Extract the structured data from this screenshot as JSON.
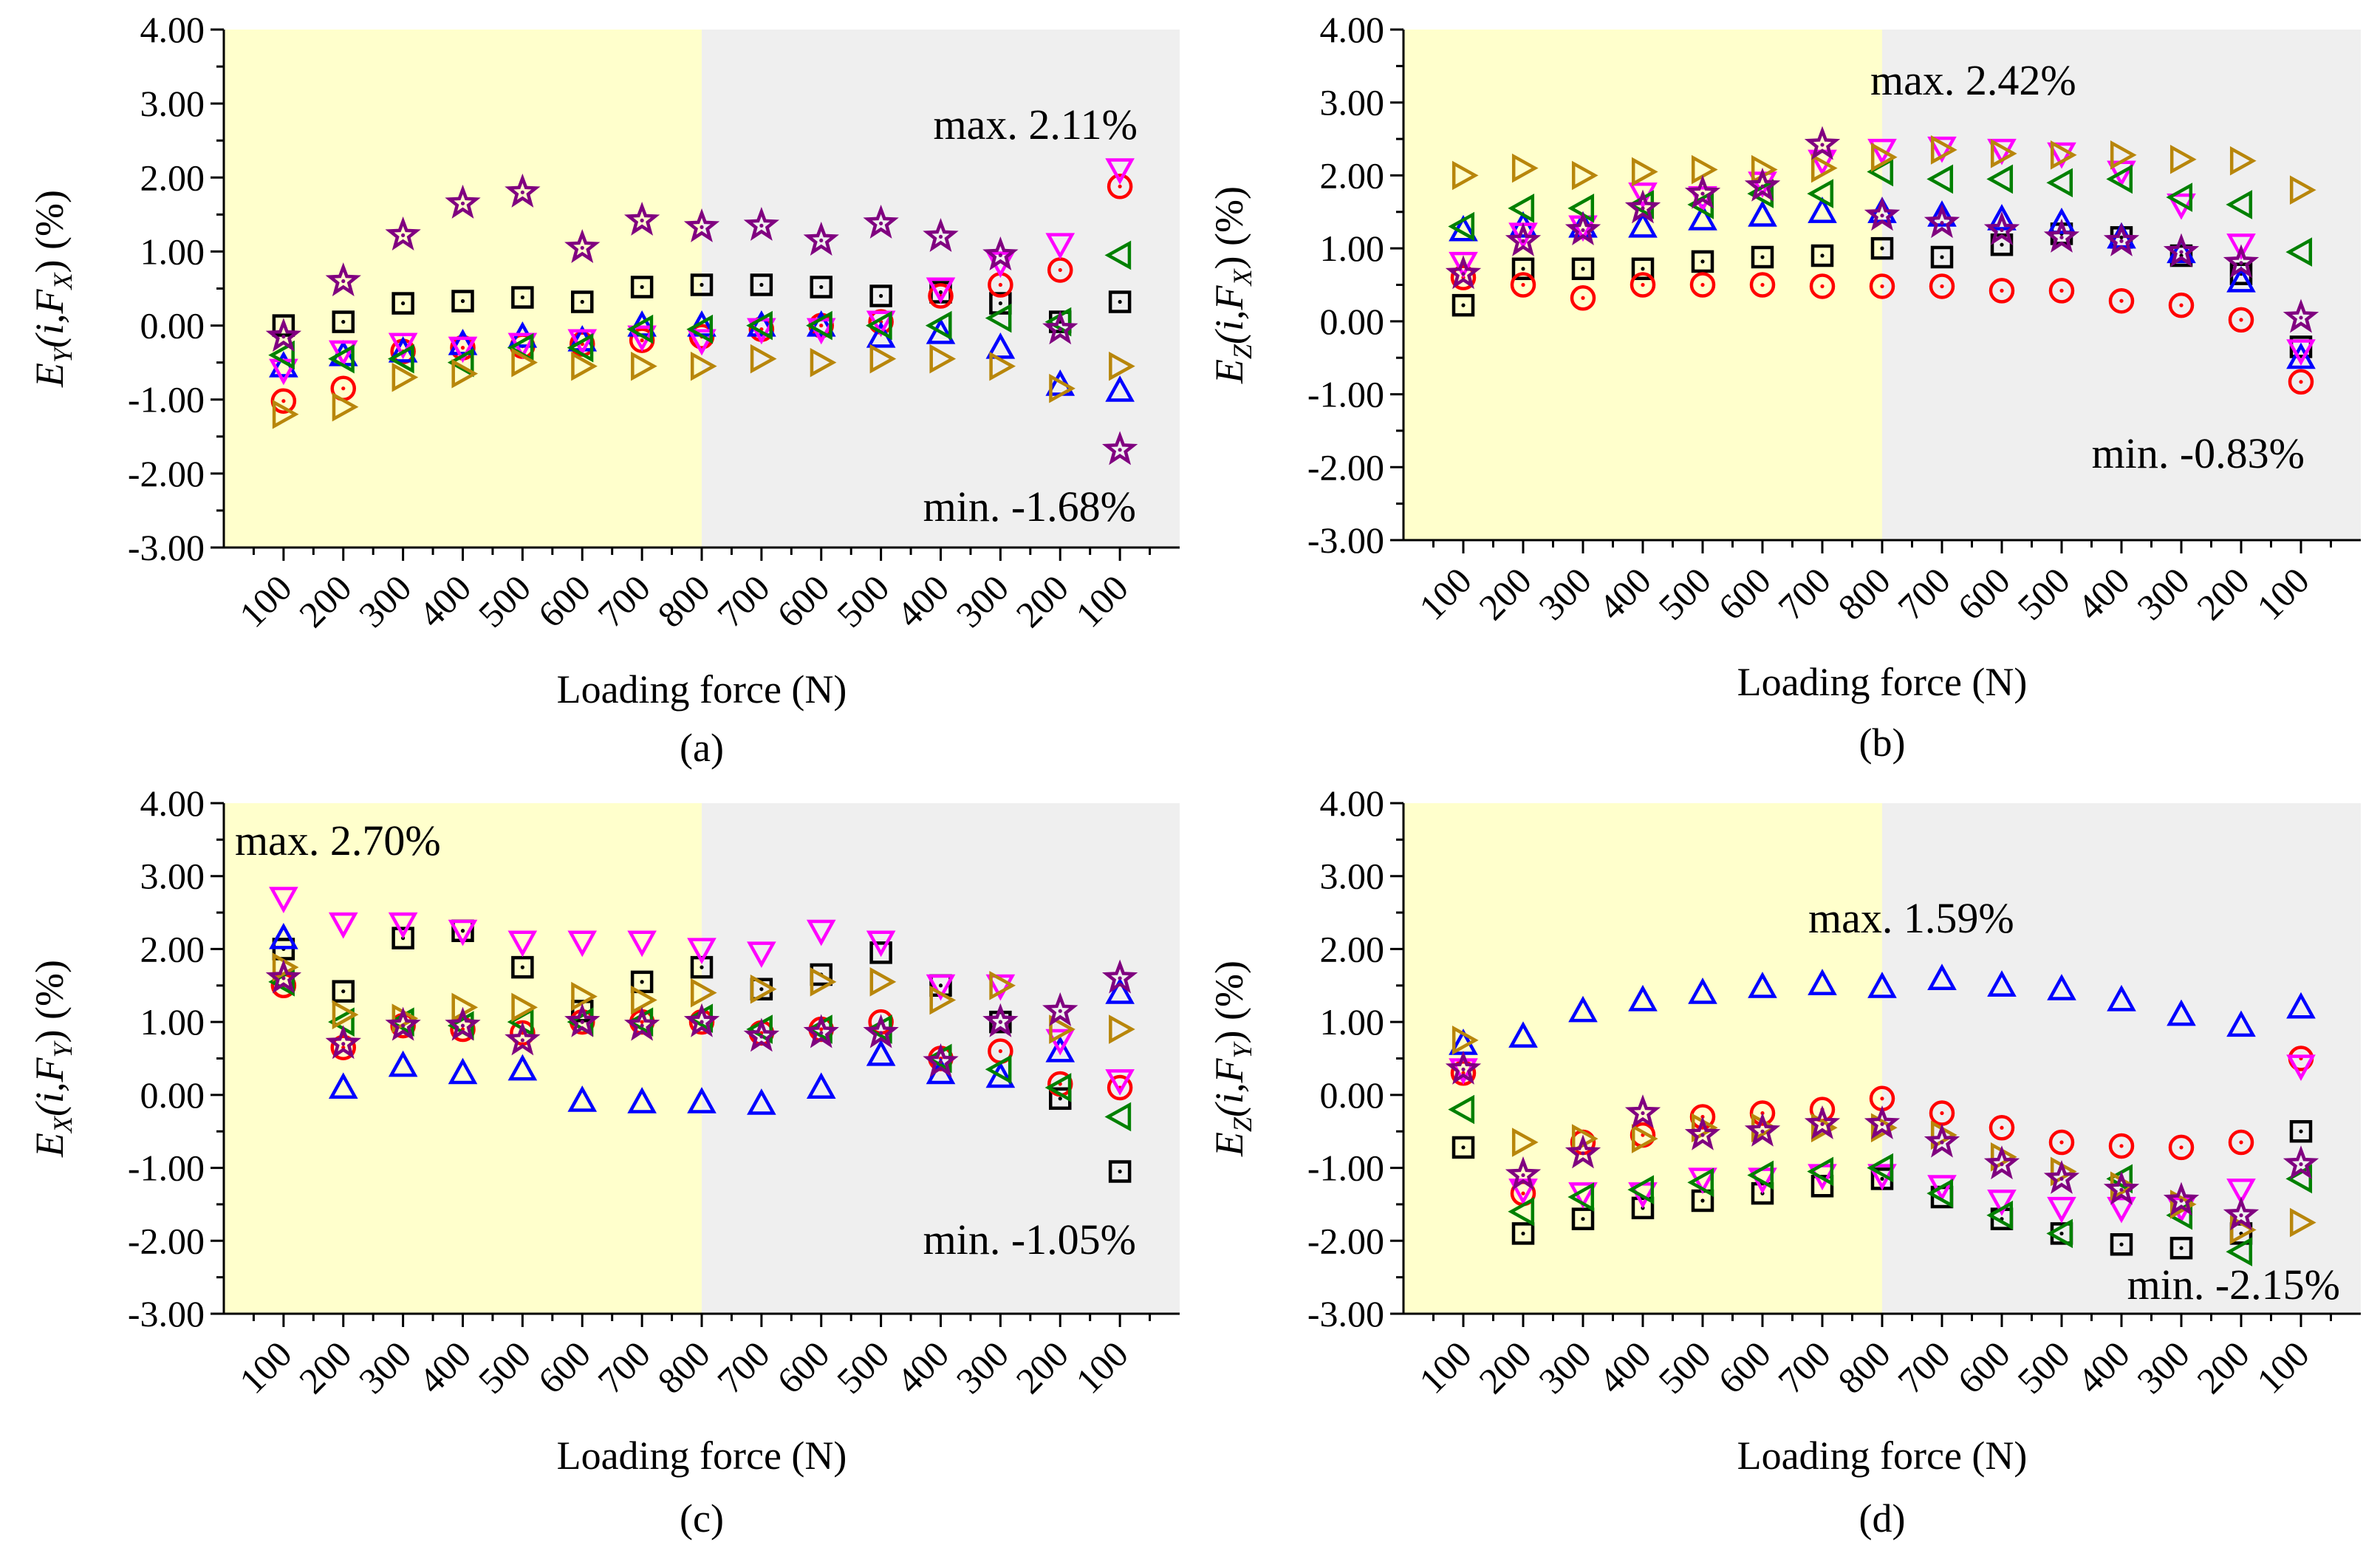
{
  "figure": {
    "colors": {
      "loading_bg": "#ffffcc",
      "unloading_bg": "#efefef",
      "square": "#000000",
      "circle": "#ff0000",
      "triangle_up": "#0000ff",
      "triangle_down": "#ff00ff",
      "triangle_left": "#008000",
      "triangle_right": "#b8860b",
      "star": "#800080"
    }
  },
  "chart_data": [
    {
      "type": "scatter",
      "panel_label": "(a)",
      "xlabel": "Loading force (N)",
      "ylabel": {
        "base": "E",
        "sub1": "Y",
        "mid": "(i,F",
        "sub2": "X",
        "tail": ") (%)"
      },
      "categories": [
        "100",
        "200",
        "300",
        "400",
        "500",
        "600",
        "700",
        "800",
        "700",
        "600",
        "500",
        "400",
        "300",
        "200",
        "100"
      ],
      "ylim": [
        -3,
        4
      ],
      "yticks": [
        "-3.00",
        "-2.00",
        "-1.00",
        "0.00",
        "1.00",
        "2.00",
        "3.00",
        "4.00"
      ],
      "annotations": {
        "max": "max. 2.11%",
        "min": "min. -1.68%"
      },
      "series": [
        {
          "marker": "square",
          "values": [
            0.0,
            0.05,
            0.3,
            0.33,
            0.38,
            0.32,
            0.52,
            0.55,
            0.55,
            0.52,
            0.4,
            0.45,
            0.3,
            0.05,
            0.32
          ]
        },
        {
          "marker": "circle",
          "values": [
            -1.02,
            -0.85,
            -0.35,
            -0.3,
            -0.28,
            -0.25,
            -0.2,
            -0.15,
            -0.05,
            0.0,
            0.05,
            0.4,
            0.55,
            0.75,
            1.88
          ]
        },
        {
          "marker": "triangle_up",
          "values": [
            -0.55,
            -0.4,
            -0.35,
            -0.25,
            -0.15,
            -0.2,
            0.0,
            0.0,
            0.0,
            0.0,
            -0.15,
            -0.1,
            -0.3,
            -0.8,
            -0.88
          ]
        },
        {
          "marker": "triangle_down",
          "values": [
            -0.6,
            -0.35,
            -0.25,
            -0.3,
            -0.25,
            -0.2,
            -0.15,
            -0.2,
            -0.05,
            -0.05,
            0.05,
            0.5,
            0.85,
            1.1,
            2.11
          ]
        },
        {
          "marker": "triangle_left",
          "values": [
            -0.4,
            -0.45,
            -0.45,
            -0.5,
            -0.3,
            -0.3,
            -0.05,
            -0.05,
            0.0,
            0.0,
            0.0,
            0.0,
            0.1,
            0.05,
            0.95
          ]
        },
        {
          "marker": "triangle_right",
          "values": [
            -1.2,
            -1.1,
            -0.7,
            -0.65,
            -0.5,
            -0.55,
            -0.55,
            -0.55,
            -0.45,
            -0.5,
            -0.45,
            -0.45,
            -0.55,
            -0.85,
            -0.55
          ]
        },
        {
          "marker": "star",
          "values": [
            -0.15,
            0.6,
            1.22,
            1.65,
            1.8,
            1.05,
            1.42,
            1.33,
            1.35,
            1.15,
            1.38,
            1.2,
            0.95,
            -0.05,
            -1.68
          ]
        }
      ]
    },
    {
      "type": "scatter",
      "panel_label": "(b)",
      "xlabel": "Loading force (N)",
      "ylabel": {
        "base": "E",
        "sub1": "Z",
        "mid": "(i,F",
        "sub2": "X",
        "tail": ") (%)"
      },
      "categories": [
        "100",
        "200",
        "300",
        "400",
        "500",
        "600",
        "700",
        "800",
        "700",
        "600",
        "500",
        "400",
        "300",
        "200",
        "100"
      ],
      "ylim": [
        -3,
        4
      ],
      "yticks": [
        "-3.00",
        "-2.00",
        "-1.00",
        "0.00",
        "1.00",
        "2.00",
        "3.00",
        "4.00"
      ],
      "annotations": {
        "max": "max. 2.42%",
        "min": "min. -0.83%"
      },
      "series": [
        {
          "marker": "square",
          "values": [
            0.22,
            0.72,
            0.72,
            0.72,
            0.82,
            0.88,
            0.9,
            1.0,
            0.88,
            1.05,
            1.2,
            1.15,
            0.9,
            0.65,
            -0.35
          ]
        },
        {
          "marker": "circle",
          "values": [
            0.6,
            0.5,
            0.32,
            0.5,
            0.5,
            0.5,
            0.48,
            0.48,
            0.48,
            0.42,
            0.42,
            0.28,
            0.22,
            0.02,
            -0.83
          ]
        },
        {
          "marker": "triangle_up",
          "values": [
            1.25,
            1.3,
            1.3,
            1.3,
            1.4,
            1.45,
            1.5,
            1.5,
            1.45,
            1.4,
            1.35,
            1.15,
            0.95,
            0.55,
            -0.5
          ]
        },
        {
          "marker": "triangle_down",
          "values": [
            0.8,
            1.2,
            1.3,
            1.75,
            1.7,
            1.9,
            2.2,
            2.35,
            2.38,
            2.35,
            2.3,
            2.05,
            1.6,
            1.05,
            -0.4
          ]
        },
        {
          "marker": "triangle_left",
          "values": [
            1.3,
            1.55,
            1.55,
            1.6,
            1.6,
            1.75,
            1.75,
            2.05,
            1.95,
            1.95,
            1.9,
            1.95,
            1.7,
            1.6,
            0.95
          ]
        },
        {
          "marker": "triangle_right",
          "values": [
            2.0,
            2.1,
            2.0,
            2.05,
            2.08,
            2.08,
            2.1,
            2.25,
            2.35,
            2.3,
            2.28,
            2.28,
            2.22,
            2.2,
            1.8
          ]
        },
        {
          "marker": "star",
          "values": [
            0.65,
            1.1,
            1.25,
            1.55,
            1.75,
            1.85,
            2.42,
            1.45,
            1.35,
            1.25,
            1.15,
            1.1,
            0.95,
            0.8,
            0.05
          ]
        }
      ]
    },
    {
      "type": "scatter",
      "panel_label": "(c)",
      "xlabel": "Loading force (N)",
      "ylabel": {
        "base": "E",
        "sub1": "X",
        "mid": "(i,F",
        "sub2": "Y",
        "tail": ") (%)"
      },
      "categories": [
        "100",
        "200",
        "300",
        "400",
        "500",
        "600",
        "700",
        "800",
        "700",
        "600",
        "500",
        "400",
        "300",
        "200",
        "100"
      ],
      "ylim": [
        -3,
        4
      ],
      "yticks": [
        "-3.00",
        "-2.00",
        "-1.00",
        "0.00",
        "1.00",
        "2.00",
        "3.00",
        "4.00"
      ],
      "annotations": {
        "max": "max. 2.70%",
        "min": "min. -1.05%"
      },
      "series": [
        {
          "marker": "square",
          "values": [
            2.0,
            1.42,
            2.15,
            2.25,
            1.75,
            1.15,
            1.55,
            1.75,
            1.45,
            1.65,
            1.95,
            1.5,
            1.0,
            -0.05,
            -1.05
          ]
        },
        {
          "marker": "circle",
          "values": [
            1.5,
            0.65,
            0.95,
            0.9,
            0.85,
            1.0,
            1.0,
            1.0,
            0.85,
            0.9,
            1.0,
            0.5,
            0.6,
            0.15,
            0.1
          ]
        },
        {
          "marker": "triangle_up",
          "values": [
            2.15,
            0.1,
            0.4,
            0.3,
            0.35,
            -0.08,
            -0.1,
            -0.1,
            -0.12,
            0.1,
            0.55,
            0.3,
            0.25,
            0.6,
            1.4
          ]
        },
        {
          "marker": "triangle_down",
          "values": [
            2.7,
            2.35,
            2.35,
            2.25,
            2.1,
            2.1,
            2.1,
            2.0,
            1.95,
            2.25,
            2.1,
            1.5,
            1.5,
            0.75,
            0.2
          ]
        },
        {
          "marker": "triangle_left",
          "values": [
            1.55,
            1.0,
            1.0,
            0.95,
            1.0,
            1.0,
            1.0,
            1.05,
            0.9,
            0.9,
            0.9,
            0.5,
            0.35,
            0.1,
            -0.3
          ]
        },
        {
          "marker": "triangle_right",
          "values": [
            1.75,
            1.1,
            1.05,
            1.2,
            1.2,
            1.35,
            1.3,
            1.4,
            1.45,
            1.55,
            1.55,
            1.3,
            1.5,
            0.9,
            0.9
          ]
        },
        {
          "marker": "star",
          "values": [
            1.6,
            0.7,
            0.95,
            0.95,
            0.75,
            1.0,
            0.95,
            1.0,
            0.8,
            0.85,
            0.85,
            0.45,
            1.0,
            1.15,
            1.6
          ]
        }
      ]
    },
    {
      "type": "scatter",
      "panel_label": "(d)",
      "xlabel": "Loading force (N)",
      "ylabel": {
        "base": "E",
        "sub1": "Z",
        "mid": "(i,F",
        "sub2": "Y",
        "tail": ") (%)"
      },
      "categories": [
        "100",
        "200",
        "300",
        "400",
        "500",
        "600",
        "700",
        "800",
        "700",
        "600",
        "500",
        "400",
        "300",
        "200",
        "100"
      ],
      "ylim": [
        -3,
        4
      ],
      "yticks": [
        "-3.00",
        "-2.00",
        "-1.00",
        "0.00",
        "1.00",
        "2.00",
        "3.00",
        "4.00"
      ],
      "annotations": {
        "max": "max. 1.59%",
        "min": "min. -2.15%"
      },
      "series": [
        {
          "marker": "square",
          "values": [
            -0.72,
            -1.9,
            -1.7,
            -1.55,
            -1.45,
            -1.35,
            -1.25,
            -1.15,
            -1.4,
            -1.7,
            -1.9,
            -2.05,
            -2.1,
            -1.9,
            -0.5
          ]
        },
        {
          "marker": "circle",
          "values": [
            0.3,
            -1.35,
            -0.65,
            -0.55,
            -0.3,
            -0.25,
            -0.2,
            -0.05,
            -0.25,
            -0.45,
            -0.65,
            -0.7,
            -0.72,
            -0.65,
            0.5
          ]
        },
        {
          "marker": "triangle_up",
          "values": [
            0.7,
            0.8,
            1.15,
            1.3,
            1.4,
            1.48,
            1.52,
            1.48,
            1.59,
            1.5,
            1.45,
            1.3,
            1.1,
            0.95,
            1.2
          ]
        },
        {
          "marker": "triangle_down",
          "values": [
            0.35,
            -1.3,
            -1.35,
            -1.35,
            -1.15,
            -1.15,
            -1.1,
            -1.1,
            -1.25,
            -1.45,
            -1.55,
            -1.55,
            -1.55,
            -1.3,
            0.4
          ]
        },
        {
          "marker": "triangle_left",
          "values": [
            -0.2,
            -1.6,
            -1.4,
            -1.3,
            -1.2,
            -1.1,
            -1.05,
            -1.0,
            -1.35,
            -1.65,
            -1.9,
            -1.15,
            -1.65,
            -2.15,
            -1.15
          ]
        },
        {
          "marker": "triangle_right",
          "values": [
            0.75,
            -0.65,
            -0.6,
            -0.6,
            -0.45,
            -0.45,
            -0.45,
            -0.45,
            -0.55,
            -0.85,
            -1.05,
            -1.25,
            -1.5,
            -1.85,
            -1.75
          ]
        },
        {
          "marker": "star",
          "values": [
            0.35,
            -1.1,
            -0.8,
            -0.25,
            -0.55,
            -0.5,
            -0.4,
            -0.4,
            -0.65,
            -0.95,
            -1.15,
            -1.3,
            -1.45,
            -1.65,
            -0.95
          ]
        }
      ]
    }
  ]
}
